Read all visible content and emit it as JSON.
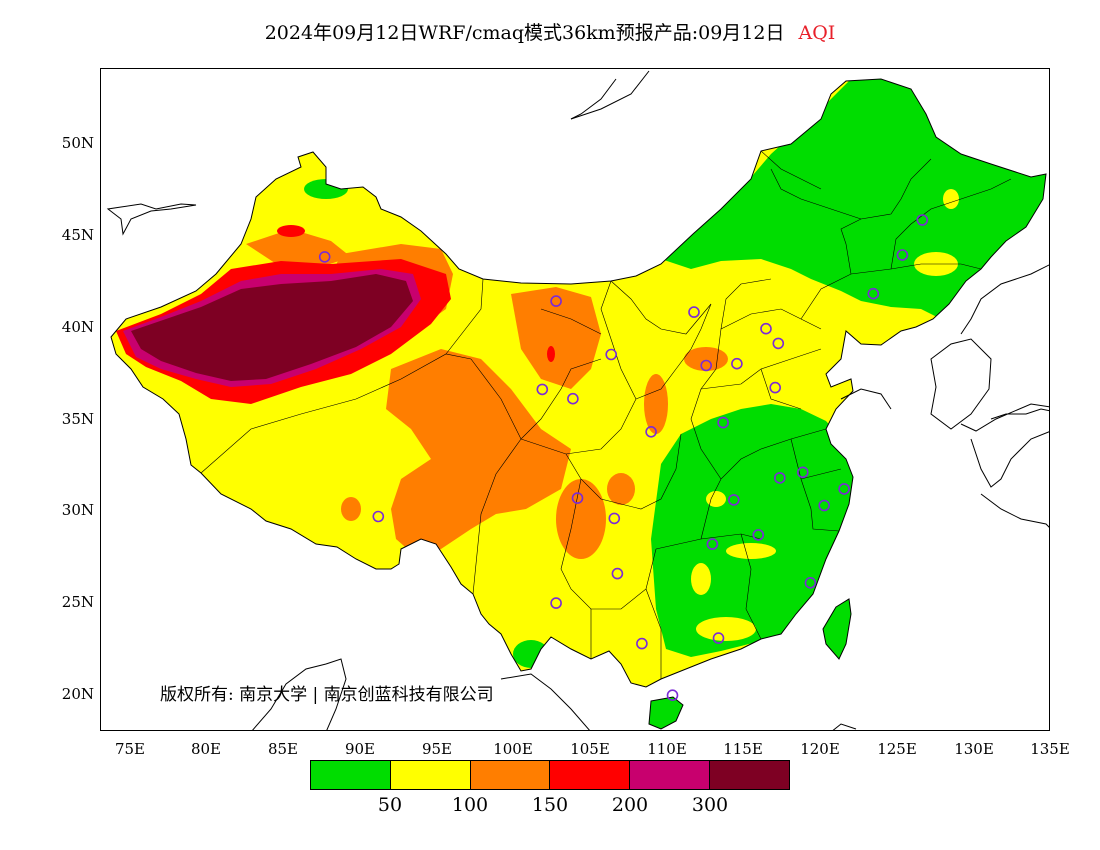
{
  "title": {
    "main": "2024年09月12日WRF/cmaq模式36km预报产品:09月12日",
    "variable": "AQI"
  },
  "axes": {
    "lat_labels": [
      "50N",
      "45N",
      "40N",
      "35N",
      "30N",
      "25N",
      "20N"
    ],
    "lon_labels": [
      "75E",
      "80E",
      "85E",
      "90E",
      "95E",
      "100E",
      "105E",
      "110E",
      "115E",
      "120E",
      "125E",
      "130E",
      "135E"
    ],
    "lon_range": [
      73,
      135
    ],
    "lat_range": [
      18,
      54
    ]
  },
  "copyright": "版权所有: 南京大学 | 南京创蓝科技有限公司",
  "legend": {
    "colors": [
      "#00dd00",
      "#ffff00",
      "#ff7e00",
      "#ff0000",
      "#c8006e",
      "#7e0023"
    ],
    "labels": [
      "50",
      "100",
      "150",
      "200",
      "300"
    ]
  },
  "stations": [
    [
      87.6,
      43.8
    ],
    [
      91.1,
      29.7
    ],
    [
      101.8,
      36.6
    ],
    [
      103.8,
      36.1
    ],
    [
      106.3,
      38.5
    ],
    [
      102.7,
      25.0
    ],
    [
      104.1,
      30.7
    ],
    [
      106.5,
      29.6
    ],
    [
      106.7,
      26.6
    ],
    [
      108.3,
      22.8
    ],
    [
      110.3,
      20.0
    ],
    [
      108.9,
      34.3
    ],
    [
      111.7,
      40.8
    ],
    [
      112.5,
      37.9
    ],
    [
      114.5,
      38.0
    ],
    [
      116.4,
      39.9
    ],
    [
      117.2,
      39.1
    ],
    [
      117.0,
      36.7
    ],
    [
      113.6,
      34.8
    ],
    [
      114.3,
      30.6
    ],
    [
      112.9,
      28.2
    ],
    [
      115.9,
      28.7
    ],
    [
      117.3,
      31.8
    ],
    [
      118.8,
      32.1
    ],
    [
      120.2,
      30.3
    ],
    [
      121.5,
      31.2
    ],
    [
      119.3,
      26.1
    ],
    [
      113.3,
      23.1
    ],
    [
      123.4,
      41.8
    ],
    [
      125.3,
      43.9
    ],
    [
      126.6,
      45.8
    ],
    [
      102.7,
      41.4
    ]
  ]
}
